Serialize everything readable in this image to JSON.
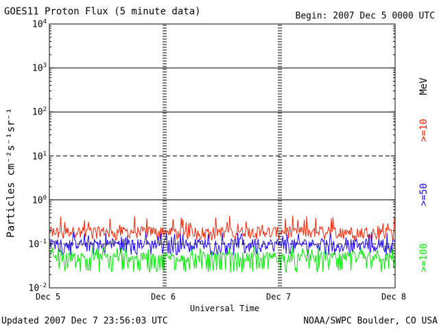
{
  "chart_data": {
    "type": "line",
    "title": "GOES11 Proton Flux (5 minute data)",
    "begin_label": "Begin: 2007 Dec 5 0000 UTC",
    "xlabel": "Universal Time",
    "ylabel": "Particles cm⁻²s⁻¹sr⁻¹",
    "x_ticks": [
      "Dec 5",
      "Dec 6",
      "Dec 7",
      "Dec 8"
    ],
    "x_range": [
      "2007-12-05 00:00",
      "2007-12-08 00:00"
    ],
    "y_scale": "log",
    "ylim": [
      0.01,
      10000
    ],
    "y_ticks": [
      {
        "base": "10",
        "exp": "4"
      },
      {
        "base": "10",
        "exp": "3"
      },
      {
        "base": "10",
        "exp": "2"
      },
      {
        "base": "10",
        "exp": "1"
      },
      {
        "base": "10",
        "exp": "0"
      },
      {
        "base": "10",
        "exp": "-1"
      },
      {
        "base": "10",
        "exp": "-2"
      }
    ],
    "gridlines": [
      {
        "value": 1000,
        "style": "solid"
      },
      {
        "value": 100,
        "style": "solid"
      },
      {
        "value": 10,
        "style": "dashed"
      },
      {
        "value": 1,
        "style": "solid"
      },
      {
        "value": 0.1,
        "style": "dashed"
      }
    ],
    "unit_label": "MeV",
    "series": [
      {
        "name": ">=10",
        "color": "#ff2000",
        "baseline": 0.19,
        "peak": 0.45,
        "floor": 0.12
      },
      {
        "name": ">=50",
        "color": "#1a00ff",
        "baseline": 0.1,
        "peak": 0.19,
        "floor": 0.055
      },
      {
        "name": ">=100",
        "color": "#00ee00",
        "baseline": 0.05,
        "peak": 0.09,
        "floor": 0.022
      }
    ]
  },
  "footer": {
    "updated": "Updated 2007 Dec  7 23:56:03 UTC",
    "credit": "NOAA/SWPC Boulder, CO USA"
  }
}
